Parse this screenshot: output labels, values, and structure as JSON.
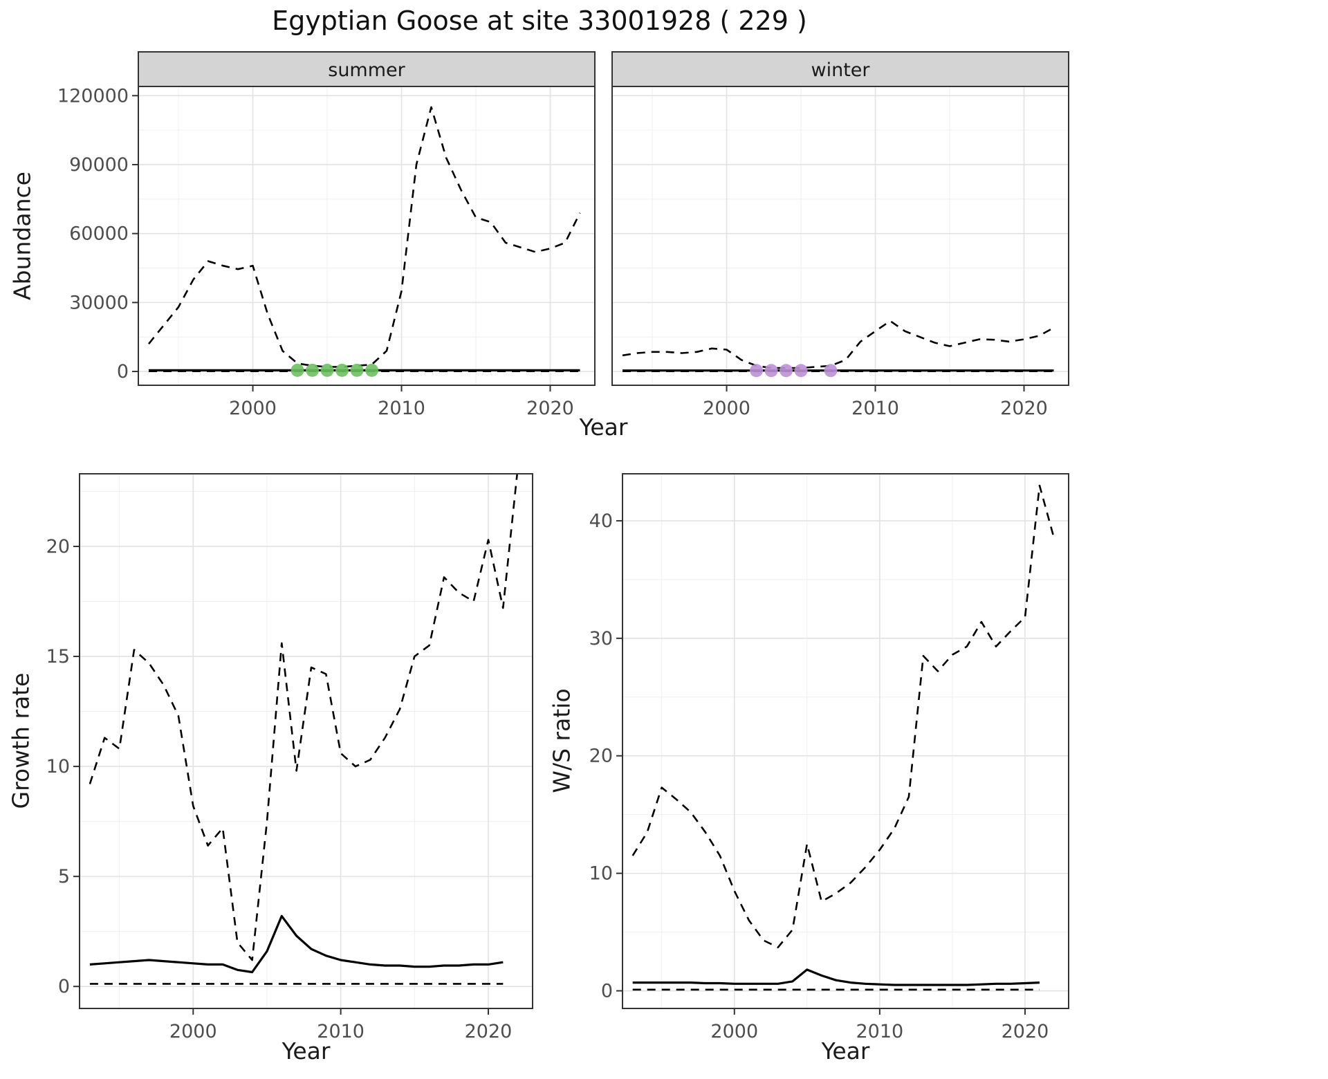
{
  "title": "Egyptian Goose at site 33001928 ( 229 )",
  "figures": {
    "abundance": {
      "ylabel": "Abundance",
      "xlabel": "Year",
      "facets": [
        "summer",
        "winter"
      ]
    },
    "growth": {
      "ylabel": "Growth rate",
      "xlabel": "Year"
    },
    "ws": {
      "ylabel": "W/S ratio",
      "xlabel": "Year"
    }
  },
  "colors": {
    "line": "#000000",
    "summer_dot": "#6cc161",
    "winter_dot": "#bd90d4",
    "strip_bg": "#d4d4d4",
    "grid_major": "#e2e2e2",
    "grid_minor": "#efefef",
    "tick_text": "#4d4d4d",
    "border": "#333333"
  },
  "chart_data": [
    {
      "id": "abundance-summer",
      "type": "line",
      "facet_label": "summer",
      "xlabel": "Year",
      "ylabel": "Abundance",
      "xlim": [
        1992.3,
        2023
      ],
      "ylim": [
        -6000,
        124000
      ],
      "xticks": [
        2000,
        2010,
        2020
      ],
      "xticks_minor": [
        1995,
        2005,
        2015
      ],
      "yticks": [
        0,
        30000,
        60000,
        90000,
        120000
      ],
      "yticks_minor": [
        15000,
        45000,
        75000,
        105000
      ],
      "series": [
        {
          "name": "upper-ci",
          "style": "dashed",
          "points": [
            [
              1993,
              12000
            ],
            [
              1994,
              20000
            ],
            [
              1995,
              28000
            ],
            [
              1996,
              40000
            ],
            [
              1997,
              48000
            ],
            [
              1998,
              46000
            ],
            [
              1999,
              44500
            ],
            [
              2000,
              46000
            ],
            [
              2001,
              25000
            ],
            [
              2002,
              9000
            ],
            [
              2003,
              3500
            ],
            [
              2004,
              2500
            ],
            [
              2005,
              2000
            ],
            [
              2006,
              2000
            ],
            [
              2007,
              2500
            ],
            [
              2008,
              3000
            ],
            [
              2009,
              9000
            ],
            [
              2010,
              35000
            ],
            [
              2011,
              90000
            ],
            [
              2012,
              115000
            ],
            [
              2013,
              93000
            ],
            [
              2014,
              79000
            ],
            [
              2015,
              67000
            ],
            [
              2016,
              65000
            ],
            [
              2017,
              56000
            ],
            [
              2018,
              54000
            ],
            [
              2019,
              52000
            ],
            [
              2020,
              53500
            ],
            [
              2021,
              56000
            ],
            [
              2022,
              69000
            ]
          ]
        },
        {
          "name": "estimate",
          "style": "solid",
          "points": [
            [
              1993,
              500
            ],
            [
              2022,
              500
            ]
          ]
        },
        {
          "name": "lower-ci",
          "style": "dashed",
          "points": [
            [
              1993,
              100
            ],
            [
              2022,
              100
            ]
          ]
        },
        {
          "name": "flagged-years",
          "style": "points",
          "color_key": "summer_dot",
          "points": [
            [
              2003,
              500
            ],
            [
              2004,
              500
            ],
            [
              2005,
              500
            ],
            [
              2006,
              500
            ],
            [
              2007,
              500
            ],
            [
              2008,
              500
            ]
          ]
        }
      ]
    },
    {
      "id": "abundance-winter",
      "type": "line",
      "facet_label": "winter",
      "xlabel": "Year",
      "ylabel": "Abundance",
      "xlim": [
        1992.3,
        2023
      ],
      "ylim": [
        -6000,
        124000
      ],
      "xticks": [
        2000,
        2010,
        2020
      ],
      "xticks_minor": [
        1995,
        2005,
        2015
      ],
      "yticks": [
        0,
        30000,
        60000,
        90000,
        120000
      ],
      "yticks_minor": [
        15000,
        45000,
        75000,
        105000
      ],
      "series": [
        {
          "name": "upper-ci",
          "style": "dashed",
          "points": [
            [
              1993,
              7000
            ],
            [
              1994,
              8000
            ],
            [
              1995,
              8500
            ],
            [
              1996,
              8500
            ],
            [
              1997,
              8000
            ],
            [
              1998,
              8500
            ],
            [
              1999,
              10000
            ],
            [
              2000,
              9500
            ],
            [
              2001,
              5000
            ],
            [
              2002,
              2500
            ],
            [
              2003,
              1500
            ],
            [
              2004,
              1500
            ],
            [
              2005,
              1500
            ],
            [
              2006,
              2000
            ],
            [
              2007,
              2500
            ],
            [
              2008,
              5000
            ],
            [
              2009,
              13000
            ],
            [
              2010,
              17500
            ],
            [
              2011,
              22000
            ],
            [
              2012,
              17500
            ],
            [
              2013,
              15000
            ],
            [
              2014,
              12500
            ],
            [
              2015,
              11000
            ],
            [
              2016,
              12500
            ],
            [
              2017,
              14000
            ],
            [
              2018,
              13800
            ],
            [
              2019,
              13000
            ],
            [
              2020,
              14000
            ],
            [
              2021,
              15500
            ],
            [
              2022,
              19000
            ]
          ]
        },
        {
          "name": "estimate",
          "style": "solid",
          "points": [
            [
              1993,
              400
            ],
            [
              2022,
              400
            ]
          ]
        },
        {
          "name": "lower-ci",
          "style": "dashed",
          "points": [
            [
              1993,
              100
            ],
            [
              2022,
              100
            ]
          ]
        },
        {
          "name": "flagged-years",
          "style": "points",
          "color_key": "winter_dot",
          "points": [
            [
              2002,
              400
            ],
            [
              2003,
              400
            ],
            [
              2004,
              400
            ],
            [
              2005,
              400
            ],
            [
              2007,
              400
            ]
          ]
        }
      ]
    },
    {
      "id": "growth-rate",
      "type": "line",
      "facet_label": null,
      "xlabel": "Year",
      "ylabel": "Growth rate",
      "xlim": [
        1992.3,
        2023
      ],
      "ylim": [
        -1,
        23.3
      ],
      "xticks": [
        2000,
        2010,
        2020
      ],
      "xticks_minor": [
        1995,
        2005,
        2015
      ],
      "yticks": [
        0,
        5,
        10,
        15,
        20
      ],
      "yticks_minor": [
        2.5,
        7.5,
        12.5,
        17.5,
        22.5
      ],
      "series": [
        {
          "name": "upper-ci",
          "style": "dashed",
          "points": [
            [
              1993,
              9.2
            ],
            [
              1994,
              11.3
            ],
            [
              1995,
              10.8
            ],
            [
              1996,
              15.3
            ],
            [
              1997,
              14.7
            ],
            [
              1998,
              13.7
            ],
            [
              1999,
              12.3
            ],
            [
              2000,
              8.2
            ],
            [
              2001,
              6.4
            ],
            [
              2002,
              7.2
            ],
            [
              2003,
              2.0
            ],
            [
              2004,
              1.2
            ],
            [
              2005,
              7.5
            ],
            [
              2006,
              15.6
            ],
            [
              2007,
              9.8
            ],
            [
              2008,
              14.5
            ],
            [
              2009,
              14.2
            ],
            [
              2010,
              10.6
            ],
            [
              2011,
              10.0
            ],
            [
              2012,
              10.3
            ],
            [
              2013,
              11.3
            ],
            [
              2014,
              12.6
            ],
            [
              2015,
              15.0
            ],
            [
              2016,
              15.5
            ],
            [
              2017,
              18.6
            ],
            [
              2018,
              17.9
            ],
            [
              2019,
              17.5
            ],
            [
              2020,
              20.3
            ],
            [
              2021,
              17.2
            ],
            [
              2022,
              23.6
            ]
          ]
        },
        {
          "name": "estimate",
          "style": "solid",
          "points": [
            [
              1993,
              1.0
            ],
            [
              1994,
              1.05
            ],
            [
              1995,
              1.1
            ],
            [
              1996,
              1.15
            ],
            [
              1997,
              1.2
            ],
            [
              1998,
              1.15
            ],
            [
              1999,
              1.1
            ],
            [
              2000,
              1.05
            ],
            [
              2001,
              1.0
            ],
            [
              2002,
              1.0
            ],
            [
              2003,
              0.75
            ],
            [
              2004,
              0.65
            ],
            [
              2005,
              1.6
            ],
            [
              2006,
              3.2
            ],
            [
              2007,
              2.3
            ],
            [
              2008,
              1.7
            ],
            [
              2009,
              1.4
            ],
            [
              2010,
              1.2
            ],
            [
              2011,
              1.1
            ],
            [
              2012,
              1.0
            ],
            [
              2013,
              0.95
            ],
            [
              2014,
              0.95
            ],
            [
              2015,
              0.9
            ],
            [
              2016,
              0.9
            ],
            [
              2017,
              0.95
            ],
            [
              2018,
              0.95
            ],
            [
              2019,
              1.0
            ],
            [
              2020,
              1.0
            ],
            [
              2021,
              1.1
            ]
          ]
        },
        {
          "name": "lower-ci",
          "style": "dashed",
          "points": [
            [
              1993,
              0.12
            ],
            [
              2021,
              0.12
            ]
          ]
        }
      ]
    },
    {
      "id": "ws-ratio",
      "type": "line",
      "facet_label": null,
      "xlabel": "Year",
      "ylabel": "W/S ratio",
      "xlim": [
        1992.3,
        2023
      ],
      "ylim": [
        -1.5,
        44
      ],
      "xticks": [
        2000,
        2010,
        2020
      ],
      "xticks_minor": [
        1995,
        2005,
        2015
      ],
      "yticks": [
        0,
        10,
        20,
        30,
        40
      ],
      "yticks_minor": [
        5,
        15,
        25,
        35
      ],
      "series": [
        {
          "name": "upper-ci",
          "style": "dashed",
          "points": [
            [
              1993,
              11.5
            ],
            [
              1994,
              13.5
            ],
            [
              1995,
              17.3
            ],
            [
              1996,
              16.3
            ],
            [
              1997,
              15.2
            ],
            [
              1998,
              13.5
            ],
            [
              1999,
              11.5
            ],
            [
              2000,
              8.5
            ],
            [
              2001,
              6.0
            ],
            [
              2002,
              4.3
            ],
            [
              2003,
              3.7
            ],
            [
              2004,
              5.2
            ],
            [
              2005,
              12.5
            ],
            [
              2006,
              7.6
            ],
            [
              2007,
              8.3
            ],
            [
              2008,
              9.2
            ],
            [
              2009,
              10.5
            ],
            [
              2010,
              12.0
            ],
            [
              2011,
              13.8
            ],
            [
              2012,
              16.5
            ],
            [
              2013,
              28.5
            ],
            [
              2014,
              27.2
            ],
            [
              2015,
              28.6
            ],
            [
              2016,
              29.3
            ],
            [
              2017,
              31.4
            ],
            [
              2018,
              29.3
            ],
            [
              2019,
              30.6
            ],
            [
              2020,
              31.8
            ],
            [
              2021,
              43.0
            ],
            [
              2022,
              38.5
            ]
          ]
        },
        {
          "name": "estimate",
          "style": "solid",
          "points": [
            [
              1993,
              0.7
            ],
            [
              1994,
              0.7
            ],
            [
              1995,
              0.7
            ],
            [
              1996,
              0.7
            ],
            [
              1997,
              0.7
            ],
            [
              1998,
              0.65
            ],
            [
              1999,
              0.65
            ],
            [
              2000,
              0.6
            ],
            [
              2001,
              0.6
            ],
            [
              2002,
              0.6
            ],
            [
              2003,
              0.6
            ],
            [
              2004,
              0.8
            ],
            [
              2005,
              1.8
            ],
            [
              2006,
              1.3
            ],
            [
              2007,
              0.9
            ],
            [
              2008,
              0.7
            ],
            [
              2009,
              0.6
            ],
            [
              2010,
              0.55
            ],
            [
              2011,
              0.5
            ],
            [
              2012,
              0.5
            ],
            [
              2013,
              0.5
            ],
            [
              2014,
              0.5
            ],
            [
              2015,
              0.5
            ],
            [
              2016,
              0.5
            ],
            [
              2017,
              0.55
            ],
            [
              2018,
              0.6
            ],
            [
              2019,
              0.6
            ],
            [
              2020,
              0.65
            ],
            [
              2021,
              0.7
            ]
          ]
        },
        {
          "name": "lower-ci",
          "style": "dashed",
          "points": [
            [
              1993,
              0.1
            ],
            [
              2021,
              0.1
            ]
          ]
        }
      ]
    }
  ]
}
